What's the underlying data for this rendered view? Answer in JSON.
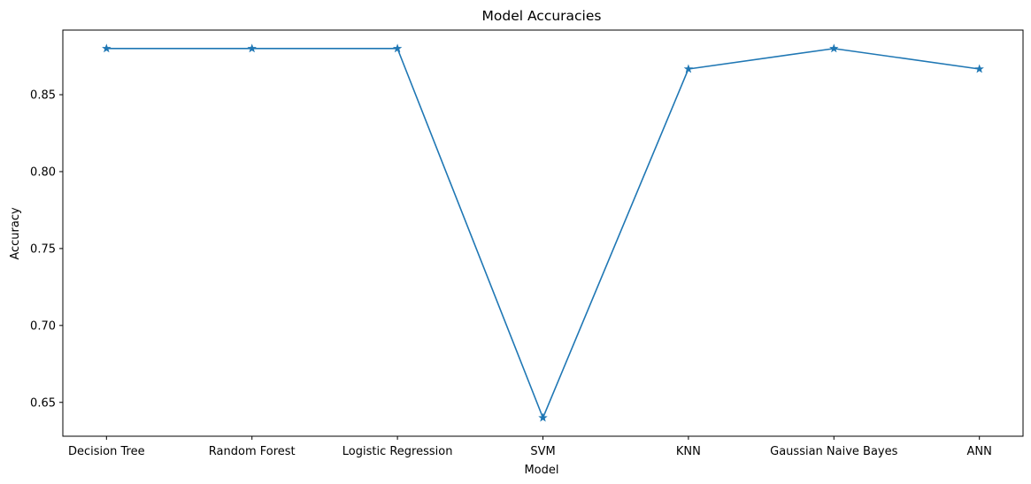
{
  "chart_data": {
    "type": "line",
    "title": "Model Accuracies",
    "xlabel": "Model",
    "ylabel": "Accuracy",
    "categories": [
      "Decision Tree",
      "Random Forest",
      "Logistic Regression",
      "SVM",
      "KNN",
      "Gaussian Naive Bayes",
      "ANN"
    ],
    "series": [
      {
        "name": "Accuracy",
        "values": [
          0.88,
          0.88,
          0.88,
          0.64,
          0.8667,
          0.88,
          0.8667
        ],
        "color": "#1f77b4",
        "marker": "star"
      }
    ],
    "ylim": [
      0.628,
      0.892
    ],
    "yticks": [
      0.65,
      0.7,
      0.75,
      0.8,
      0.85
    ],
    "ytick_labels": [
      "0.65",
      "0.70",
      "0.75",
      "0.80",
      "0.85"
    ],
    "grid": false,
    "legend": "none"
  }
}
